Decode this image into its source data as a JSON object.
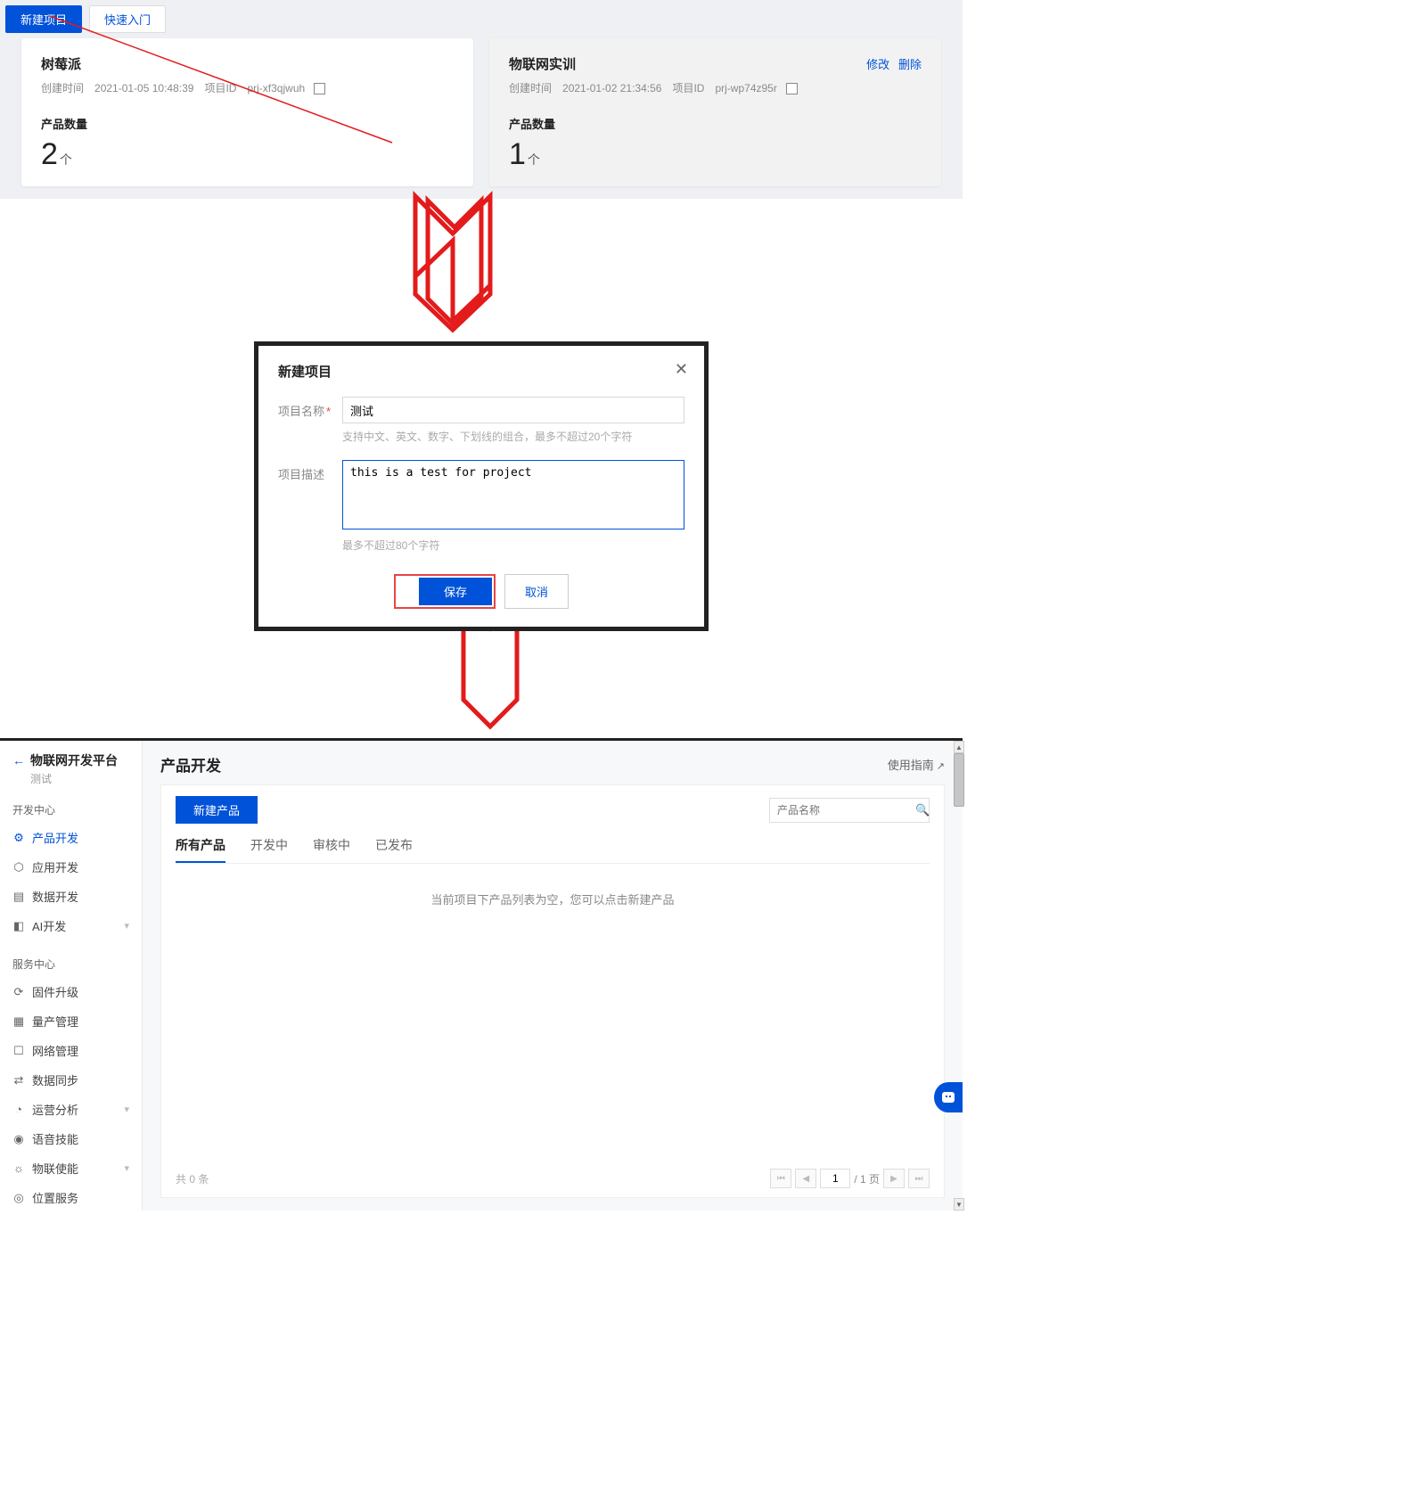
{
  "colors": {
    "primary": "#0052d9",
    "annotation": "#e31b1b",
    "border_dark": "#222"
  },
  "section1": {
    "tabs": {
      "new_project": "新建项目",
      "quick_start": "快速入门"
    },
    "cards": [
      {
        "title": "树莓派",
        "created_label": "创建时间",
        "created": "2021-01-05 10:48:39",
        "id_label": "项目ID",
        "id": "prj-xf3qjwuh",
        "count_label": "产品数量",
        "count": "2",
        "unit": "个",
        "actions": {
          "edit": "",
          "delete": ""
        }
      },
      {
        "title": "物联网实训",
        "created_label": "创建时间",
        "created": "2021-01-02 21:34:56",
        "id_label": "项目ID",
        "id": "prj-wp74z95r",
        "count_label": "产品数量",
        "count": "1",
        "unit": "个",
        "actions": {
          "edit": "修改",
          "delete": "删除"
        }
      }
    ]
  },
  "modal": {
    "title": "新建项目",
    "name_label": "项目名称",
    "name_value": "测试",
    "name_hint": "支持中文、英文、数字、下划线的组合，最多不超过20个字符",
    "desc_label": "项目描述",
    "desc_value": "this is a test for project",
    "desc_hint": "最多不超过80个字符",
    "save": "保存",
    "cancel": "取消"
  },
  "section3": {
    "nav": {
      "back_title": "物联网开发平台",
      "sub": "测试",
      "group_dev": "开发中心",
      "group_svc": "服务中心",
      "items_dev": [
        {
          "label": "产品开发",
          "icon": "⚙",
          "active": true
        },
        {
          "label": "应用开发",
          "icon": "⬡"
        },
        {
          "label": "数据开发",
          "icon": "▤"
        },
        {
          "label": "AI开发",
          "icon": "◧",
          "expand": true
        }
      ],
      "items_svc": [
        {
          "label": "固件升级",
          "icon": "⟳"
        },
        {
          "label": "量产管理",
          "icon": "▦"
        },
        {
          "label": "网络管理",
          "icon": "☐"
        },
        {
          "label": "数据同步",
          "icon": "⇄"
        },
        {
          "label": "运营分析",
          "icon": "◔",
          "expand": true
        },
        {
          "label": "语音技能",
          "icon": "◉"
        },
        {
          "label": "物联使能",
          "icon": "☼",
          "expand": true
        },
        {
          "label": "位置服务",
          "icon": "◎"
        }
      ]
    },
    "main": {
      "title": "产品开发",
      "guide": "使用指南",
      "new_product": "新建产品",
      "search_placeholder": "产品名称",
      "tabs": [
        "所有产品",
        "开发中",
        "审核中",
        "已发布"
      ],
      "empty": "当前项目下产品列表为空，您可以点击新建产品",
      "total_label": "共",
      "total_count": "0",
      "total_unit": "条",
      "page_value": "1",
      "page_suffix": "/ 1 页"
    }
  }
}
